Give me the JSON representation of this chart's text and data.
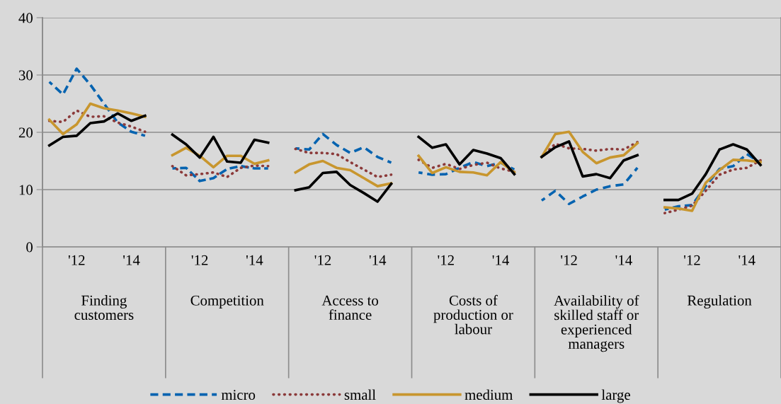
{
  "chart_data": {
    "type": "line",
    "categories": [
      null,
      null,
      "'12",
      null,
      null,
      null,
      "'14",
      null,
      null,
      null,
      null,
      "'12",
      null,
      null,
      null,
      "'14",
      null,
      null,
      null,
      null,
      "'12",
      null,
      null,
      null,
      "'14",
      null,
      null,
      null,
      null,
      "'12",
      null,
      null,
      null,
      "'14",
      null,
      null,
      null,
      null,
      "'12",
      null,
      null,
      null,
      "'14",
      null,
      null,
      null,
      null,
      "'12",
      null,
      null,
      null,
      "'14",
      null,
      null
    ],
    "annotations": [
      "Finding\ncustomers",
      "Competition",
      "Access to\nfinance",
      "Costs of\nproduction or\nlabour",
      "Availability of\nskilled staff or\nexperienced\nmanagers",
      "Regulation"
    ],
    "ylim": [
      0,
      40
    ],
    "yticks": [
      0,
      10,
      20,
      30,
      40
    ],
    "grid": "y",
    "legend": "bottom",
    "series": [
      {
        "name": "micro",
        "color": "#0563b0",
        "line_style": "dashed",
        "values": [
          28.8,
          26.6,
          31.1,
          28.3,
          25.0,
          21.7,
          20.1,
          19.4,
          null,
          13.7,
          13.8,
          11.5,
          12.0,
          13.6,
          14.1,
          13.7,
          13.7,
          null,
          17.2,
          17.0,
          19.7,
          17.8,
          16.4,
          17.4,
          15.7,
          14.7,
          null,
          13.0,
          12.6,
          12.7,
          13.8,
          14.8,
          14.1,
          14.7,
          13.5,
          null,
          8.1,
          9.8,
          7.5,
          8.8,
          10.0,
          10.6,
          10.9,
          13.8,
          null,
          6.5,
          7.1,
          7.3,
          10.6,
          13.6,
          14.1,
          16.2,
          14.7,
          null
        ]
      },
      {
        "name": "small",
        "color": "#8b3a3a",
        "line_style": "dotted",
        "values": [
          22.0,
          21.8,
          23.8,
          22.7,
          22.8,
          21.7,
          21.0,
          20.1,
          null,
          14.1,
          12.5,
          12.7,
          13.0,
          12.2,
          13.8,
          14.2,
          14.1,
          null,
          17.1,
          16.4,
          16.4,
          16.2,
          14.8,
          13.5,
          12.2,
          12.6,
          null,
          15.2,
          13.8,
          14.5,
          13.6,
          14.3,
          14.7,
          13.7,
          13.1,
          null,
          15.7,
          18.0,
          17.2,
          17.1,
          16.8,
          17.1,
          17.0,
          18.3,
          null,
          5.9,
          6.5,
          7.2,
          9.8,
          12.6,
          13.5,
          13.8,
          15.1,
          null
        ]
      },
      {
        "name": "medium",
        "color": "#c8962e",
        "line_style": "solid",
        "values": [
          22.2,
          19.7,
          21.4,
          25.0,
          24.2,
          23.8,
          23.3,
          22.7,
          null,
          16.0,
          17.3,
          15.9,
          13.9,
          15.9,
          15.9,
          14.5,
          15.1,
          null,
          13.0,
          14.4,
          15.0,
          13.8,
          13.4,
          12.0,
          10.6,
          11.1,
          null,
          15.9,
          12.9,
          13.9,
          13.1,
          13.0,
          12.5,
          14.8,
          13.0,
          null,
          15.7,
          19.7,
          20.1,
          16.6,
          14.6,
          15.6,
          16.0,
          18.1,
          null,
          6.9,
          6.7,
          6.3,
          11.2,
          13.4,
          15.2,
          15.1,
          14.8,
          null
        ]
      },
      {
        "name": "large",
        "color": "#000000",
        "line_style": "solid",
        "values": [
          17.7,
          19.2,
          19.4,
          21.6,
          21.9,
          23.3,
          22.0,
          22.9,
          null,
          19.6,
          17.9,
          15.6,
          19.2,
          14.9,
          14.7,
          18.7,
          18.2,
          null,
          9.9,
          10.4,
          12.9,
          13.1,
          10.8,
          9.4,
          7.9,
          11.0,
          null,
          19.2,
          17.3,
          17.9,
          14.4,
          16.9,
          16.3,
          15.5,
          12.7,
          null,
          15.7,
          17.4,
          18.4,
          12.3,
          12.7,
          12.0,
          15.1,
          16.0,
          null,
          8.2,
          8.2,
          9.3,
          12.7,
          17.0,
          17.9,
          17.0,
          14.3,
          null
        ]
      }
    ]
  }
}
